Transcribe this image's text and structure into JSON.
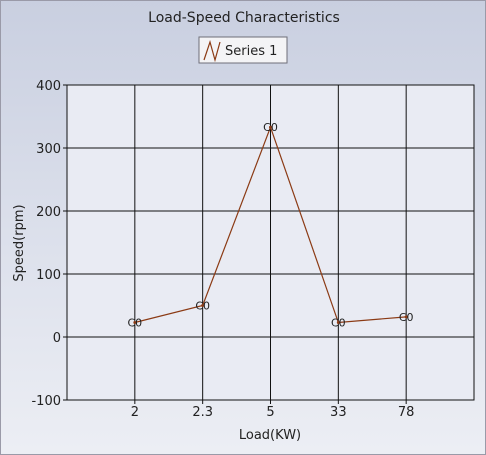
{
  "chart_data": {
    "type": "line",
    "title": "Load-Speed Characteristics",
    "xlabel": "Load(KW)",
    "ylabel": "Speed(rpm)",
    "categories": [
      "2",
      "2.3",
      "5",
      "33",
      "78"
    ],
    "series": [
      {
        "name": "Series 1",
        "values": [
          23,
          50,
          333,
          23,
          32
        ],
        "labels": [
          "C0",
          "C0",
          "C0",
          "C0",
          "C0"
        ],
        "color": "#8b3a14"
      }
    ],
    "ylim": [
      -100,
      400
    ],
    "yticks": [
      "-100",
      "0",
      "100",
      "200",
      "300",
      "400"
    ],
    "grid": true,
    "legend": "top-center"
  }
}
